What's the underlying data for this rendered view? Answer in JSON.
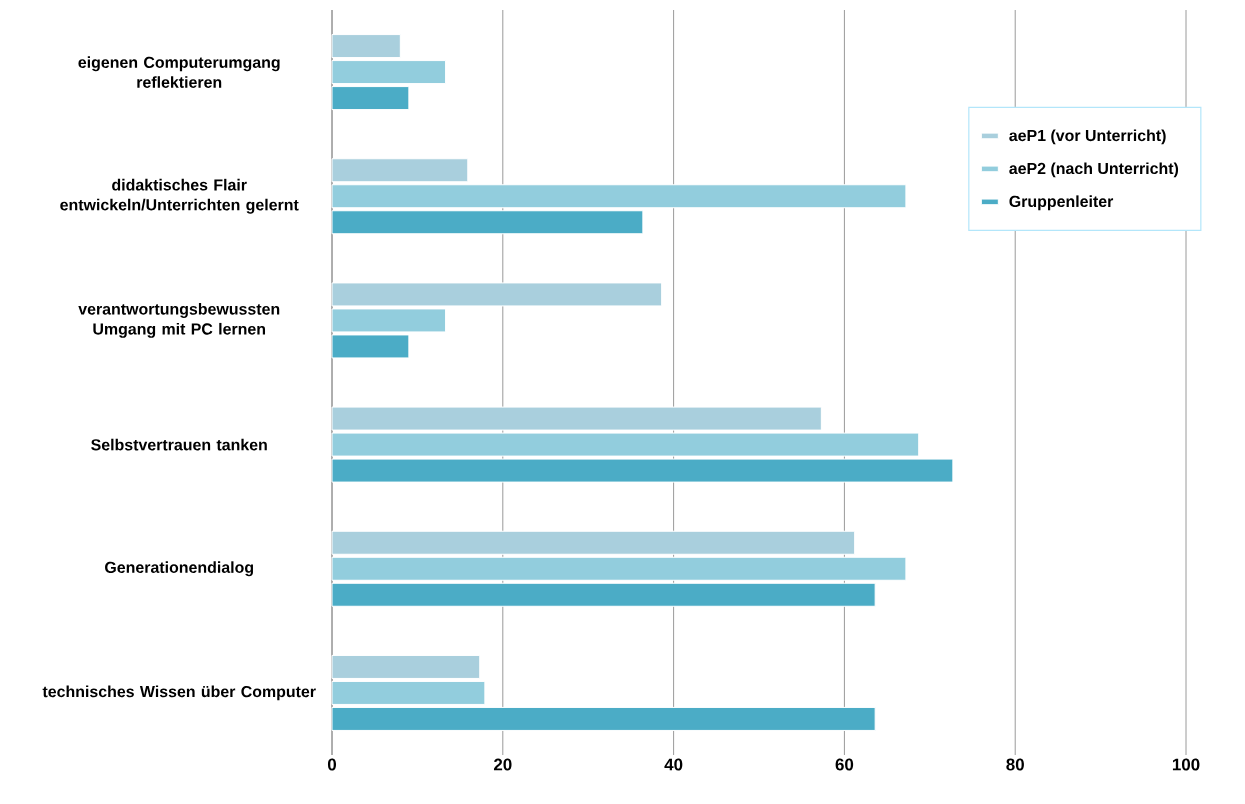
{
  "chart_data": {
    "type": "bar",
    "orientation": "horizontal",
    "categories": [
      "eigenen Computerumgang reflektieren",
      "didaktisches Flair entwickeln/Unterrichten gelernt",
      "verantwortungsbewussten Umgang mit PC lernen",
      "Selbstvertrauen tanken",
      "Generationendialog",
      "technisches Wissen über Computer"
    ],
    "series": [
      {
        "name": "aeP1 (vor Unterricht)",
        "color": "#a9cfdd",
        "values": [
          8.0,
          15.9,
          38.6,
          57.3,
          61.2,
          17.3
        ]
      },
      {
        "name": "aeP2 (nach Unterricht)",
        "color": "#92cddd",
        "values": [
          13.3,
          67.2,
          13.3,
          68.7,
          67.2,
          17.9
        ]
      },
      {
        "name": "Gruppenleiter",
        "color": "#4bacc6",
        "values": [
          9.0,
          36.4,
          9.0,
          72.7,
          63.6,
          63.6
        ]
      }
    ],
    "xlim": [
      0,
      100
    ],
    "xticks": [
      0,
      20,
      40,
      60,
      80,
      100
    ],
    "grid": "x",
    "legend": "right"
  }
}
